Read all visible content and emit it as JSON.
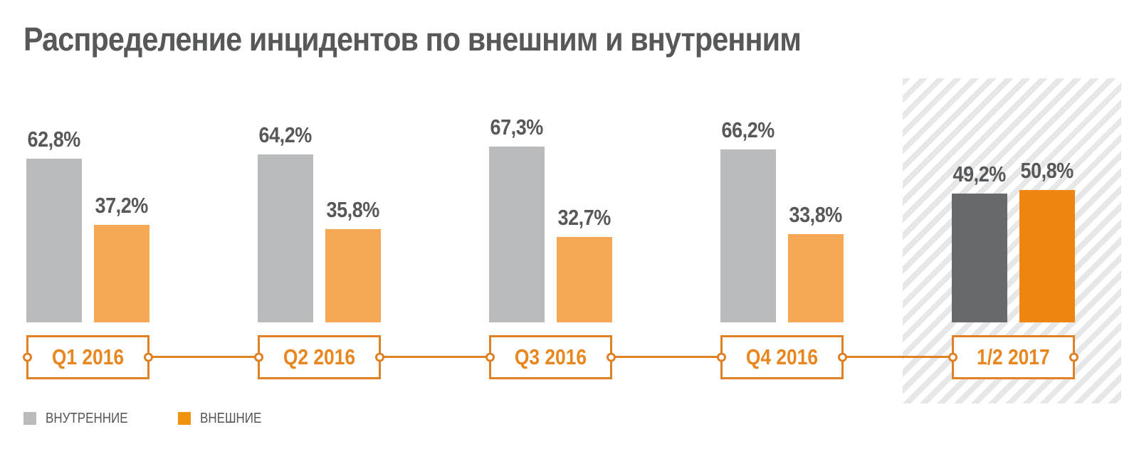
{
  "title": "Распределение инцидентов по внешним и внутренним",
  "chart_data": {
    "type": "bar",
    "title": "Распределение инцидентов по внешним и внутренним",
    "categories": [
      "Q1 2016",
      "Q2 2016",
      "Q3 2016",
      "Q4 2016",
      "1/2 2017"
    ],
    "series": [
      {
        "name": "ВНУТРЕННИЕ",
        "values": [
          62.8,
          64.2,
          67.3,
          66.2,
          49.2
        ],
        "color": "#b9bbbd",
        "highlight_color": "#67696d"
      },
      {
        "name": "ВНЕШНИЕ",
        "values": [
          37.2,
          35.8,
          32.7,
          33.8,
          50.8
        ],
        "color": "#f7a855",
        "highlight_color": "#ee8611"
      }
    ],
    "value_labels": [
      [
        "62,8%",
        "37,2%"
      ],
      [
        "64,2%",
        "35,8%"
      ],
      [
        "67,3%",
        "32,7%"
      ],
      [
        "66,2%",
        "33,8%"
      ],
      [
        "49,2%",
        "50,8%"
      ]
    ],
    "unit": "%",
    "ylim": [
      0,
      100
    ],
    "grid": false,
    "axes_shown": false,
    "legend_position": "bottom-left",
    "highlighted_category": "1/2 2017",
    "highlight_style": "diagonal-hatched background panel"
  },
  "legend": {
    "items": [
      {
        "label": "ВНУТРЕННИЕ",
        "color": "#b9bbbd"
      },
      {
        "label": "ВНЕШНИЕ",
        "color": "#f0930f"
      }
    ]
  },
  "colors": {
    "accent_orange": "#e08125",
    "category_text_orange": "#e8861f",
    "text_dark": "#57585a",
    "internal_bar": "#b9bbbd",
    "external_bar": "#f7a855",
    "internal_bar_highlight": "#67696d",
    "external_bar_highlight": "#ee8611",
    "hatch_stripe": "#e6e7e9",
    "background": "#ffffff"
  }
}
